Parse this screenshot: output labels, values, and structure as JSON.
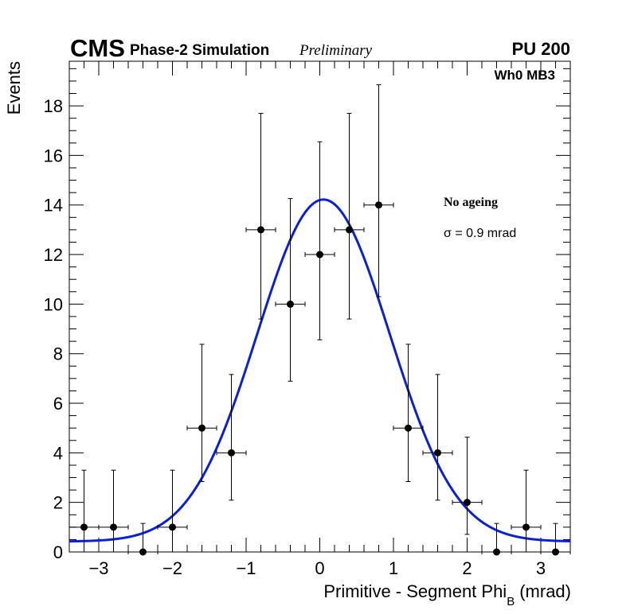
{
  "header": {
    "experiment": "CMS",
    "subtitle": "Phase-2 Simulation",
    "status": "Preliminary",
    "pileup": "PU 200",
    "station": "Wh0 MB3"
  },
  "annotations": {
    "condition": "No ageing",
    "sigma_label": "σ = 0.9 mrad"
  },
  "colors": {
    "fit": "#0a1fd6",
    "points": "#000000",
    "frame": "#000000"
  },
  "chart_data": {
    "type": "scatter",
    "title": "",
    "xlabel": "Primitive - Segment Phi",
    "xlabel_sub": "B",
    "xlabel_unit": "(mrad)",
    "ylabel": "Events",
    "xlim": [
      -3.4,
      3.4
    ],
    "ylim": [
      0,
      19.8
    ],
    "x_ticks": [
      -3,
      -2,
      -1,
      0,
      1,
      2,
      3
    ],
    "x_tick_labels": [
      "−3",
      "−2",
      "−1",
      "0",
      "1",
      "2",
      "3"
    ],
    "y_ticks": [
      0,
      2,
      4,
      6,
      8,
      10,
      12,
      14,
      16,
      18
    ],
    "y_tick_labels": [
      "0",
      "2",
      "4",
      "6",
      "8",
      "10",
      "12",
      "14",
      "16",
      "18"
    ],
    "bin_half_width": 0.2,
    "series": [
      {
        "name": "Data",
        "points": [
          {
            "x": -3.2,
            "y": 1,
            "err_low": 1.0,
            "err_high": 2.3
          },
          {
            "x": -2.8,
            "y": 1,
            "err_low": 1.0,
            "err_high": 2.3
          },
          {
            "x": -2.4,
            "y": 0,
            "err_low": 0,
            "err_high": 1.15
          },
          {
            "x": -2.0,
            "y": 1,
            "err_low": 1.0,
            "err_high": 2.3
          },
          {
            "x": -1.6,
            "y": 5,
            "err_low": 2.16,
            "err_high": 3.38
          },
          {
            "x": -1.2,
            "y": 4,
            "err_low": 1.91,
            "err_high": 3.16
          },
          {
            "x": -0.8,
            "y": 13,
            "err_low": 3.6,
            "err_high": 4.7
          },
          {
            "x": -0.4,
            "y": 10,
            "err_low": 3.11,
            "err_high": 4.26
          },
          {
            "x": 0.0,
            "y": 12,
            "err_low": 3.44,
            "err_high": 4.55
          },
          {
            "x": 0.4,
            "y": 13,
            "err_low": 3.6,
            "err_high": 4.7
          },
          {
            "x": 0.8,
            "y": 14,
            "err_low": 3.7,
            "err_high": 4.85
          },
          {
            "x": 1.2,
            "y": 5,
            "err_low": 2.16,
            "err_high": 3.38
          },
          {
            "x": 1.6,
            "y": 4,
            "err_low": 1.91,
            "err_high": 3.16
          },
          {
            "x": 2.0,
            "y": 2,
            "err_low": 1.29,
            "err_high": 2.63
          },
          {
            "x": 2.4,
            "y": 0,
            "err_low": 0,
            "err_high": 1.15
          },
          {
            "x": 2.8,
            "y": 1,
            "err_low": 1.0,
            "err_high": 2.3
          },
          {
            "x": 3.2,
            "y": 0,
            "err_low": 0,
            "err_high": 1.15
          }
        ]
      },
      {
        "name": "Gaussian fit",
        "function": "gaussian_plus_constant",
        "amplitude": 13.8,
        "mean": 0.05,
        "sigma": 0.9,
        "constant": 0.42
      }
    ]
  }
}
